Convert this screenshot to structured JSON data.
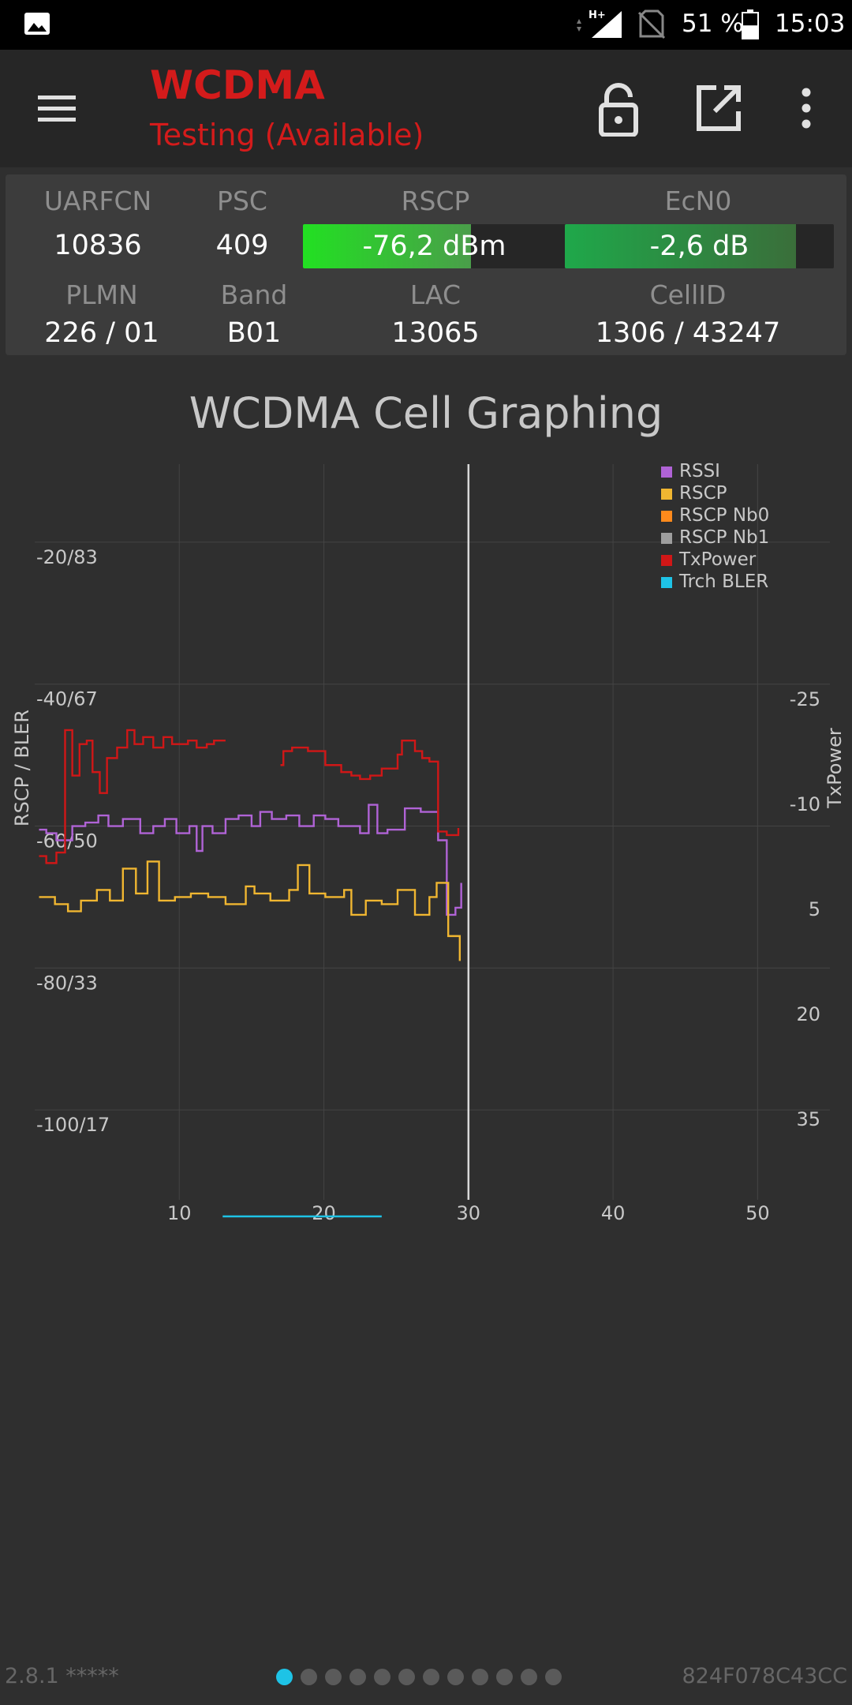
{
  "status_bar": {
    "network_type": "H+",
    "battery_percent": "51 %",
    "battery_level": 0.51,
    "time": "15:03",
    "icons": [
      "gallery-notification-icon",
      "data-arrows-icon",
      "signal-icon",
      "no-sim-icon",
      "battery-icon"
    ]
  },
  "app_bar": {
    "title": "WCDMA",
    "subtitle": "Testing (Available)",
    "accent_color": "#d41b1b",
    "icons": [
      "menu-icon",
      "lock-open-icon",
      "open-external-icon",
      "more-vert-icon"
    ]
  },
  "info": {
    "uarfcn": {
      "label": "UARFCN",
      "value": "10836"
    },
    "psc": {
      "label": "PSC",
      "value": "409"
    },
    "rscp": {
      "label": "RSCP",
      "value": "-76,2 dBm",
      "level": 0.64,
      "color_start": "#22e022",
      "color_end": "#4a9e4a"
    },
    "ecn0": {
      "label": "EcN0",
      "value": "-2,6 dB",
      "level": 0.86,
      "color_start": "#1fa84a",
      "color_end": "#3a6e3a"
    },
    "plmn": {
      "label": "PLMN",
      "value": "226 / 01"
    },
    "band": {
      "label": "Band",
      "value": "B01"
    },
    "lac": {
      "label": "LAC",
      "value": "13065"
    },
    "cellid": {
      "label": "CellID",
      "value": "1306 / 43247"
    }
  },
  "chart_title": "WCDMA Cell Graphing",
  "chart_data": {
    "type": "line",
    "title": "WCDMA Cell Graphing",
    "ylabel": "RSCP / BLER",
    "y2label": "TxPower",
    "xlim": [
      0,
      55
    ],
    "ylim": [
      -116,
      -9
    ],
    "y2lim": [
      50,
      -58.5
    ],
    "x_ticks": [
      10,
      20,
      30,
      40,
      50
    ],
    "y_ticks": [
      "-20/83",
      "-40/67",
      "-60/50",
      "-80/33",
      "-100/17"
    ],
    "y_tick_values": [
      -20,
      -40,
      -60,
      -80,
      -100
    ],
    "y2_ticks": [
      -25,
      -10,
      5,
      20,
      35
    ],
    "grid": true,
    "legend_position": "top-right",
    "cursor_x": 30,
    "series": [
      {
        "name": "RSSI",
        "color": "#b063d6",
        "x": [
          0.3,
          0.8,
          1.5,
          2.6,
          3.5,
          4.4,
          5.1,
          6.1,
          7.3,
          8.2,
          9.0,
          9.8,
          10.7,
          11.2,
          11.6,
          12.3,
          13.2,
          14.1,
          15.0,
          15.6,
          16.4,
          17.4,
          18.3,
          19.3,
          20.1,
          21.0,
          21.8,
          22.5,
          23.1,
          23.7,
          24.4,
          25.6,
          26.7,
          27.4,
          27.9,
          28.5,
          29.1,
          29.5
        ],
        "y": [
          -60.5,
          -61.0,
          -62.0,
          -60.0,
          -59.5,
          -58.5,
          -60.0,
          -59.0,
          -61.0,
          -60.0,
          -59.0,
          -61.0,
          -60.0,
          -63.5,
          -60.0,
          -61.0,
          -59.0,
          -58.5,
          -60.0,
          -58.0,
          -59.0,
          -58.5,
          -60.0,
          -58.5,
          -59.0,
          -60.0,
          -60.0,
          -61.0,
          -57.0,
          -61.0,
          -60.5,
          -57.5,
          -58.0,
          -58.0,
          -62.0,
          -72.5,
          -71.5,
          -68.0
        ]
      },
      {
        "name": "RSCP",
        "color": "#f0b631",
        "x": [
          0.3,
          1.4,
          2.3,
          3.2,
          4.3,
          5.2,
          6.1,
          7.0,
          7.8,
          8.6,
          9.7,
          10.8,
          12.0,
          13.2,
          14.6,
          15.2,
          16.3,
          17.6,
          18.2,
          19.0,
          20.1,
          21.4,
          21.9,
          22.9,
          24.0,
          25.1,
          26.3,
          27.3,
          27.8,
          28.6,
          29.4
        ],
        "y": [
          -70.0,
          -71.0,
          -72.0,
          -70.5,
          -69.0,
          -70.5,
          -66.0,
          -69.5,
          -65.0,
          -70.5,
          -70.0,
          -69.5,
          -70.0,
          -71.0,
          -68.5,
          -69.5,
          -70.5,
          -69.0,
          -65.5,
          -69.5,
          -70.0,
          -69.0,
          -72.5,
          -70.5,
          -71.0,
          -69.0,
          -72.5,
          -70.0,
          -68.0,
          -75.5,
          -79.0
        ]
      },
      {
        "name": "RSCP Nb0",
        "color": "#ff8a1c",
        "x": [],
        "y": []
      },
      {
        "name": "RSCP Nb1",
        "color": "#9e9e9e",
        "x": [],
        "y": []
      },
      {
        "name": "TxPower",
        "color": "#d01717",
        "axis": "y2",
        "segments": [
          {
            "x": [
              0.3,
              0.8,
              1.5,
              2.1,
              2.6,
              3.1,
              3.6,
              4.0,
              4.5,
              5.0,
              5.7,
              6.4,
              6.9,
              7.5,
              8.2,
              8.9,
              9.5,
              10.0,
              10.6,
              11.2,
              11.9,
              12.4,
              13.2
            ],
            "y": [
              -2.5,
              -1.5,
              -3.0,
              -20.5,
              -14.0,
              -18.5,
              -19.0,
              -14.5,
              -11.5,
              -16.5,
              -18.0,
              -20.5,
              -18.5,
              -19.5,
              -18.0,
              -19.5,
              -18.5,
              -18.5,
              -19.0,
              -18.0,
              -18.5,
              -19.0,
              -19.0
            ]
          },
          {
            "x": [
              17.0,
              17.2,
              17.8,
              18.9,
              19.7,
              20.1,
              21.2,
              21.9,
              22.5,
              23.2,
              24.0,
              25.1,
              25.4,
              26.3,
              26.8,
              27.3,
              27.9,
              28.5,
              29.3
            ],
            "y": [
              -15.5,
              -17.5,
              -18.0,
              -17.5,
              -17.5,
              -15.5,
              -14.5,
              -14.0,
              -13.5,
              -14.0,
              -15.0,
              -17.0,
              -19.0,
              -17.5,
              -16.5,
              -16.0,
              -6.0,
              -5.5,
              -6.5
            ]
          }
        ]
      },
      {
        "name": "Trch BLER",
        "color": "#1ec3e6",
        "x": [
          13.0,
          24.0
        ],
        "y": [
          -115.0,
          -115.0
        ]
      }
    ]
  },
  "footer": {
    "version": "2.8.1 *****",
    "device_id": "824F078C43CC",
    "page_count": 12,
    "active_page": 1
  }
}
